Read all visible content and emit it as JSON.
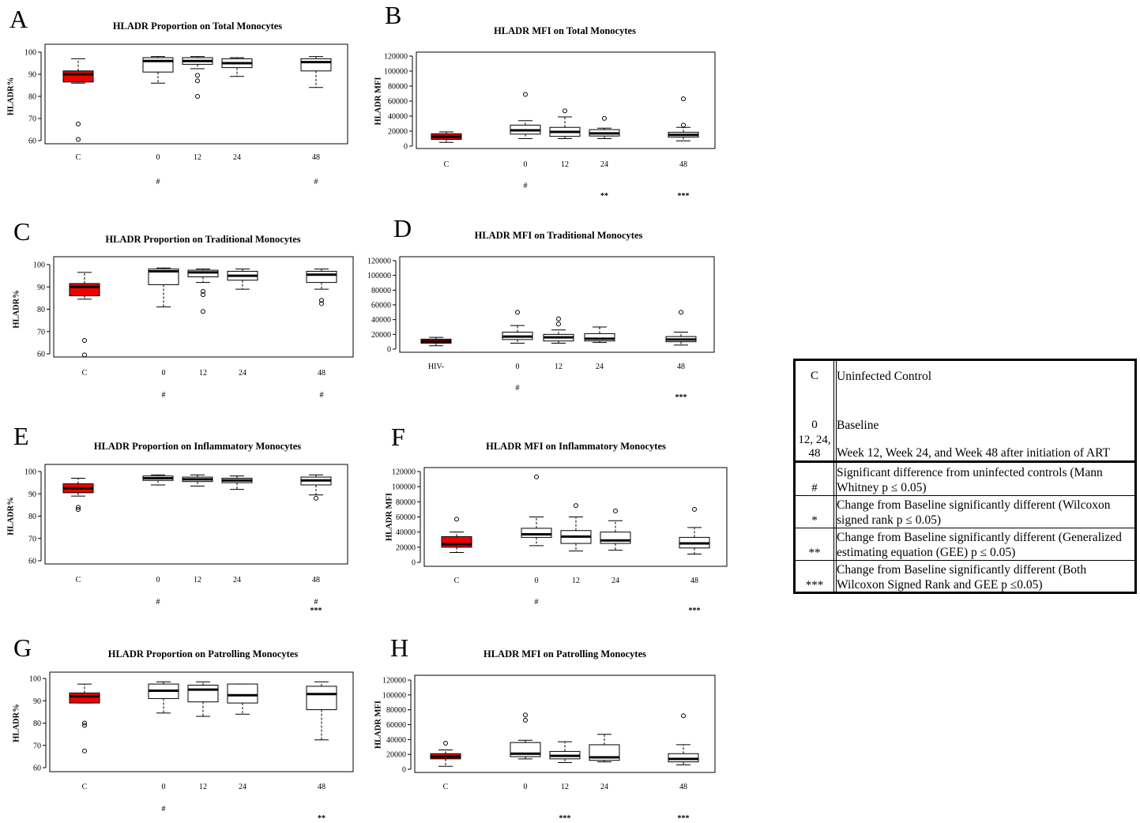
{
  "chart_data": [
    {
      "panel": "A",
      "type": "box",
      "title": "HLADR Proportion on Total Monocytes",
      "ylabel": "HLADR%",
      "ylim": [
        60,
        100
      ],
      "yticks": [
        60,
        70,
        80,
        90,
        100
      ],
      "categories": [
        "C",
        "0",
        "12",
        "24",
        "48"
      ],
      "boxes": [
        {
          "min": 86,
          "q1": 86.5,
          "median": 90,
          "q3": 91.5,
          "max": 97,
          "outliers": [
            67.5,
            60.5
          ],
          "fill": "#ee0000"
        },
        {
          "min": 86,
          "q1": 91,
          "median": 96,
          "q3": 97.5,
          "max": 98,
          "outliers": []
        },
        {
          "min": 92.5,
          "q1": 94.5,
          "median": 96,
          "q3": 97.5,
          "max": 98,
          "outliers": [
            89.5,
            87,
            80
          ]
        },
        {
          "min": 89,
          "q1": 93,
          "median": 95,
          "q3": 97,
          "max": 97.5,
          "outliers": []
        },
        {
          "min": 84,
          "q1": 91.5,
          "median": 95.5,
          "q3": 97,
          "max": 98,
          "outliers": []
        }
      ],
      "sig_row1": [
        "",
        "#",
        "",
        "",
        "#"
      ],
      "sig_row2": [
        "",
        "",
        "",
        "",
        ""
      ]
    },
    {
      "panel": "B",
      "type": "box",
      "title": "HLADR MFI on Total Monocytes",
      "ylabel": "HLADR MFI",
      "ylim": [
        0,
        120000
      ],
      "yticks": [
        0,
        20000,
        40000,
        60000,
        80000,
        100000,
        120000
      ],
      "categories": [
        "C",
        "0",
        "12",
        "24",
        "48"
      ],
      "boxes": [
        {
          "min": 5000,
          "q1": 9000,
          "median": 12500,
          "q3": 16500,
          "max": 19000,
          "outliers": [],
          "fill": "#ee0000"
        },
        {
          "min": 10000,
          "q1": 16000,
          "median": 21000,
          "q3": 28000,
          "max": 34000,
          "outliers": [
            69000
          ]
        },
        {
          "min": 10000,
          "q1": 13000,
          "median": 19000,
          "q3": 25000,
          "max": 39000,
          "outliers": [
            47000
          ]
        },
        {
          "min": 10000,
          "q1": 13500,
          "median": 17000,
          "q3": 22000,
          "max": 24000,
          "outliers": [
            37000
          ]
        },
        {
          "min": 7000,
          "q1": 12000,
          "median": 15000,
          "q3": 18500,
          "max": 25000,
          "outliers": [
            28000,
            63000
          ]
        }
      ],
      "sig_row1": [
        "",
        "#",
        "",
        "",
        ""
      ],
      "sig_row2": [
        "",
        "",
        "",
        "**",
        "***"
      ]
    },
    {
      "panel": "C",
      "type": "box",
      "title": "HLADR Proportion on Traditional Monocytes",
      "ylabel": "HLADR%",
      "ylim": [
        60,
        100
      ],
      "yticks": [
        60,
        70,
        80,
        90,
        100
      ],
      "categories": [
        "C",
        "0",
        "12",
        "24",
        "48"
      ],
      "boxes": [
        {
          "min": 84.5,
          "q1": 86,
          "median": 90,
          "q3": 91.5,
          "max": 96.5,
          "outliers": [
            66,
            59.5
          ],
          "fill": "#ee0000"
        },
        {
          "min": 81,
          "q1": 91,
          "median": 97,
          "q3": 98,
          "max": 98.5,
          "outliers": []
        },
        {
          "min": 92,
          "q1": 94.5,
          "median": 96.5,
          "q3": 97.5,
          "max": 98,
          "outliers": [
            88,
            86.5,
            79
          ]
        },
        {
          "min": 89,
          "q1": 93,
          "median": 95,
          "q3": 97,
          "max": 98,
          "outliers": []
        },
        {
          "min": 89,
          "q1": 92,
          "median": 95.5,
          "q3": 97,
          "max": 98,
          "outliers": [
            84,
            82.5
          ]
        }
      ],
      "sig_row1": [
        "",
        "#",
        "",
        "",
        "#"
      ],
      "sig_row2": [
        "",
        "",
        "",
        "",
        ""
      ]
    },
    {
      "panel": "D",
      "type": "box",
      "title": "HLADR MFI on Traditional Monocytes",
      "ylabel": "",
      "ylim": [
        0,
        120000
      ],
      "yticks": [
        0,
        20000,
        40000,
        60000,
        80000,
        100000,
        120000
      ],
      "categories": [
        "HIV-",
        "0",
        "12",
        "24",
        "48"
      ],
      "boxes": [
        {
          "min": 4500,
          "q1": 8000,
          "median": 10500,
          "q3": 13500,
          "max": 16000,
          "outliers": [],
          "fill": "#ee0000"
        },
        {
          "min": 8000,
          "q1": 13000,
          "median": 17000,
          "q3": 23000,
          "max": 32000,
          "outliers": [
            50000
          ]
        },
        {
          "min": 8000,
          "q1": 11000,
          "median": 16000,
          "q3": 20000,
          "max": 26000,
          "outliers": [
            34000,
            41000
          ]
        },
        {
          "min": 9000,
          "q1": 11000,
          "median": 14000,
          "q3": 21000,
          "max": 30000,
          "outliers": []
        },
        {
          "min": 5500,
          "q1": 10000,
          "median": 13000,
          "q3": 17000,
          "max": 23000,
          "outliers": [
            50000
          ]
        }
      ],
      "sig_row1": [
        "",
        "#",
        "",
        "",
        ""
      ],
      "sig_row2": [
        "",
        "",
        "",
        "",
        "***"
      ]
    },
    {
      "panel": "E",
      "type": "box",
      "title": "HLADR Proportion on Inflammatory Monocytes",
      "ylabel": "HLADR%",
      "ylim": [
        60,
        100
      ],
      "yticks": [
        60,
        70,
        80,
        90,
        100
      ],
      "categories": [
        "C",
        "0",
        "12",
        "24",
        "48"
      ],
      "boxes": [
        {
          "min": 89,
          "q1": 90.5,
          "median": 92.5,
          "q3": 94.5,
          "max": 97,
          "outliers": [
            84,
            83
          ],
          "fill": "#ee0000"
        },
        {
          "min": 94,
          "q1": 96,
          "median": 97,
          "q3": 98,
          "max": 98.5,
          "outliers": []
        },
        {
          "min": 93.5,
          "q1": 95.5,
          "median": 96.5,
          "q3": 97.5,
          "max": 98.5,
          "outliers": []
        },
        {
          "min": 92,
          "q1": 95,
          "median": 96,
          "q3": 97,
          "max": 98,
          "outliers": []
        },
        {
          "min": 89.5,
          "q1": 94,
          "median": 96,
          "q3": 97.5,
          "max": 98.5,
          "outliers": [
            88
          ]
        }
      ],
      "sig_row1": [
        "",
        "#",
        "",
        "",
        "#"
      ],
      "sig_row2": [
        "",
        "",
        "",
        "",
        "***"
      ]
    },
    {
      "panel": "F",
      "type": "box",
      "title": "HLADR MFI on Inflammatory Monocytes",
      "ylabel": "HLADR MFI",
      "ylim": [
        0,
        120000
      ],
      "yticks": [
        0,
        20000,
        40000,
        60000,
        80000,
        100000,
        120000
      ],
      "categories": [
        "C",
        "0",
        "12",
        "24",
        "48"
      ],
      "boxes": [
        {
          "min": 13000,
          "q1": 20000,
          "median": 24000,
          "q3": 34000,
          "max": 40000,
          "outliers": [
            57000
          ],
          "fill": "#ee0000"
        },
        {
          "min": 22000,
          "q1": 33000,
          "median": 37000,
          "q3": 45000,
          "max": 60000,
          "outliers": [
            113000
          ]
        },
        {
          "min": 15000,
          "q1": 25000,
          "median": 34000,
          "q3": 42000,
          "max": 60000,
          "outliers": [
            75000
          ]
        },
        {
          "min": 16000,
          "q1": 25000,
          "median": 29000,
          "q3": 40000,
          "max": 55000,
          "outliers": [
            68000
          ]
        },
        {
          "min": 11000,
          "q1": 19000,
          "median": 25000,
          "q3": 33000,
          "max": 46000,
          "outliers": [
            70000
          ]
        }
      ],
      "sig_row1": [
        "",
        "#",
        "",
        "",
        ""
      ],
      "sig_row2": [
        "",
        "",
        "",
        "",
        "***"
      ]
    },
    {
      "panel": "G",
      "type": "box",
      "title": "HLADR Proportion on Patrolling Monocytes",
      "ylabel": "HLADR%",
      "ylim": [
        60,
        100
      ],
      "yticks": [
        60,
        70,
        80,
        90,
        100
      ],
      "categories": [
        "C",
        "0",
        "12",
        "24",
        "48"
      ],
      "boxes": [
        {
          "min": 89,
          "q1": 89,
          "median": 92,
          "q3": 93.5,
          "max": 97.5,
          "outliers": [
            80,
            79,
            67.5
          ],
          "fill": "#ee0000"
        },
        {
          "min": 84.5,
          "q1": 91,
          "median": 94.5,
          "q3": 97.5,
          "max": 98.5,
          "outliers": []
        },
        {
          "min": 83,
          "q1": 89.5,
          "median": 95,
          "q3": 97,
          "max": 98.5,
          "outliers": []
        },
        {
          "min": 84,
          "q1": 89,
          "median": 92.5,
          "q3": 97.5,
          "max": 97.5,
          "outliers": []
        },
        {
          "min": 72.5,
          "q1": 86,
          "median": 93,
          "q3": 96.5,
          "max": 98.5,
          "outliers": []
        }
      ],
      "sig_row1": [
        "",
        "#",
        "",
        "",
        ""
      ],
      "sig_row2": [
        "",
        "",
        "",
        "",
        "**"
      ]
    },
    {
      "panel": "H",
      "type": "box",
      "title": "HLADR MFI on Patrolling Monocytes",
      "ylabel": "HLADR MFI",
      "ylim": [
        0,
        120000
      ],
      "yticks": [
        0,
        20000,
        40000,
        60000,
        80000,
        100000,
        120000
      ],
      "categories": [
        "C",
        "0",
        "12",
        "24",
        "48"
      ],
      "boxes": [
        {
          "min": 4000,
          "q1": 14000,
          "median": 17000,
          "q3": 21000,
          "max": 26000,
          "outliers": [
            35000
          ],
          "fill": "#ee0000"
        },
        {
          "min": 14000,
          "q1": 17000,
          "median": 21000,
          "q3": 36000,
          "max": 39000,
          "outliers": [
            66000,
            73000
          ]
        },
        {
          "min": 9000,
          "q1": 14000,
          "median": 18000,
          "q3": 24000,
          "max": 37000,
          "outliers": []
        },
        {
          "min": 10000,
          "q1": 12000,
          "median": 16000,
          "q3": 33000,
          "max": 47000,
          "outliers": []
        },
        {
          "min": 6000,
          "q1": 10000,
          "median": 14000,
          "q3": 21000,
          "max": 33000,
          "outliers": [
            72000
          ]
        }
      ],
      "sig_row1": [
        "",
        "",
        "",
        "",
        ""
      ],
      "sig_row2": [
        "",
        "",
        "***",
        "",
        "***"
      ]
    }
  ],
  "legend": {
    "rows": [
      {
        "code": "C",
        "desc": "Uninfected Control"
      },
      {
        "code": "0",
        "desc": "Baseline"
      },
      {
        "code": "12, 24, 48",
        "desc": "Week 12, Week 24, and Week 48 after initiation of ART"
      },
      {
        "code": "#",
        "desc": "Significant difference from uninfected controls (Mann Whitney p ≤ 0.05)"
      },
      {
        "code": "*",
        "desc": "Change from Baseline significantly different (Wilcoxon signed rank p ≤ 0.05)"
      },
      {
        "code": "**",
        "desc": "Change from Baseline significantly different (Generalized estimating equation (GEE)  p ≤ 0.05)"
      },
      {
        "code": "***",
        "desc": "Change from Baseline significantly different (Both Wilcoxon Signed Rank and GEE p ≤0.05)"
      }
    ]
  }
}
